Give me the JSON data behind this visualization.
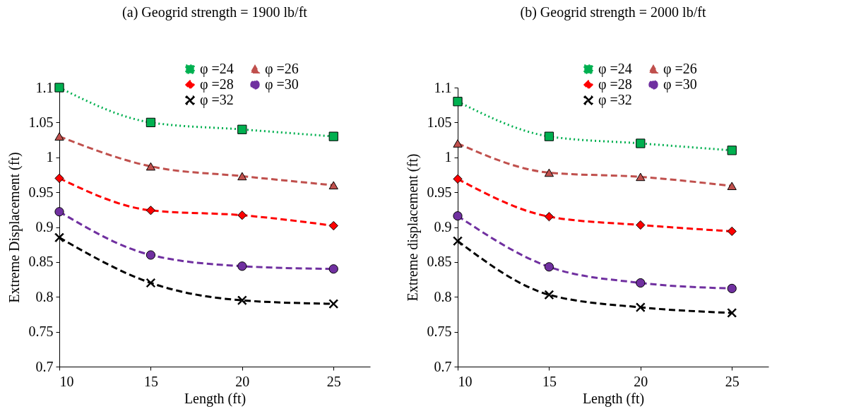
{
  "chart_data": [
    {
      "type": "line",
      "title": "(a) Geogrid strength = 1900 lb/ft",
      "xlabel": "Length (ft)",
      "ylabel": "Extreme Displacement (ft)",
      "x": [
        10,
        15,
        20,
        25
      ],
      "xlim": [
        10,
        27
      ],
      "xticks": [
        10,
        15,
        20,
        25
      ],
      "ylim": [
        0.7,
        1.1
      ],
      "yticks": [
        0.7,
        0.75,
        0.8,
        0.85,
        0.9,
        0.95,
        1,
        1.05,
        1.1
      ],
      "grid": false,
      "legend": "top right",
      "series": [
        {
          "name": "φ =24",
          "color": "#00b050",
          "marker": "square",
          "line_style": "dotted",
          "values": [
            1.1,
            1.05,
            1.04,
            1.03
          ]
        },
        {
          "name": "φ =26",
          "color": "#c0504d",
          "marker": "triangle",
          "line_style": "dashed",
          "values": [
            1.03,
            0.987,
            0.973,
            0.96
          ]
        },
        {
          "name": "φ =28",
          "color": "#ff0000",
          "marker": "diamond",
          "line_style": "dashed",
          "values": [
            0.97,
            0.924,
            0.917,
            0.902
          ]
        },
        {
          "name": "φ =30",
          "color": "#7030a0",
          "marker": "circle",
          "line_style": "dashed",
          "values": [
            0.922,
            0.86,
            0.844,
            0.84
          ]
        },
        {
          "name": "φ =32",
          "color": "#000000",
          "marker": "cross",
          "line_style": "dashed",
          "values": [
            0.885,
            0.82,
            0.795,
            0.79
          ]
        }
      ]
    },
    {
      "type": "line",
      "title": "(b) Geogrid strength = 2000 lb/ft",
      "xlabel": "Length (ft)",
      "ylabel": "Extreme displacement (ft)",
      "x": [
        10,
        15,
        20,
        25
      ],
      "xlim": [
        10,
        27
      ],
      "xticks": [
        10,
        15,
        20,
        25
      ],
      "ylim": [
        0.7,
        1.1
      ],
      "yticks": [
        0.7,
        0.75,
        0.8,
        0.85,
        0.9,
        0.95,
        1,
        1.05,
        1.1
      ],
      "grid": false,
      "legend": "top right",
      "series": [
        {
          "name": "φ =24",
          "color": "#00b050",
          "marker": "square",
          "line_style": "dotted",
          "values": [
            1.08,
            1.03,
            1.02,
            1.01
          ]
        },
        {
          "name": "φ =26",
          "color": "#c0504d",
          "marker": "triangle",
          "line_style": "dashed",
          "values": [
            1.02,
            0.978,
            0.972,
            0.959
          ]
        },
        {
          "name": "φ =28",
          "color": "#ff0000",
          "marker": "diamond",
          "line_style": "dashed",
          "values": [
            0.969,
            0.915,
            0.903,
            0.894
          ]
        },
        {
          "name": "φ =30",
          "color": "#7030a0",
          "marker": "circle",
          "line_style": "dashed",
          "values": [
            0.916,
            0.843,
            0.82,
            0.812
          ]
        },
        {
          "name": "φ =32",
          "color": "#000000",
          "marker": "cross",
          "line_style": "dashed",
          "values": [
            0.88,
            0.803,
            0.785,
            0.777
          ]
        }
      ]
    }
  ]
}
